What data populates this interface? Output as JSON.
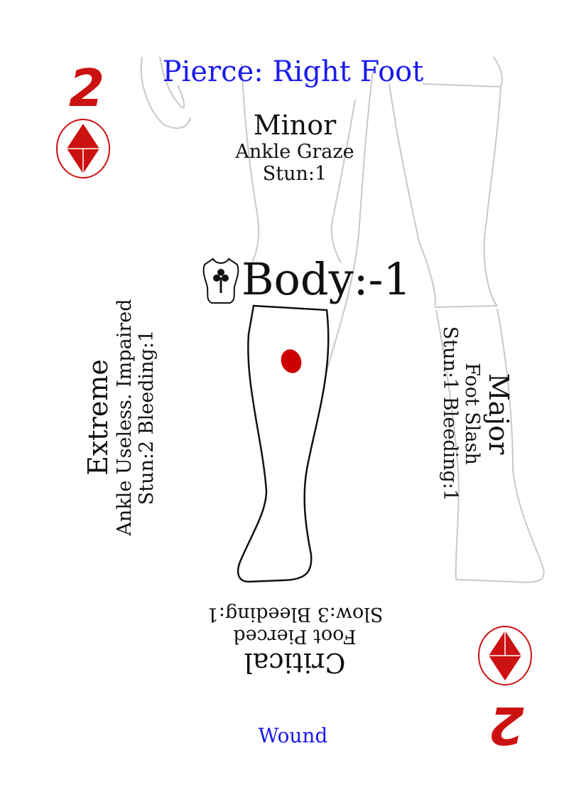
{
  "card": {
    "rank": "2",
    "suit": "diamonds-icon",
    "title": "Pierce: Right Foot",
    "footer": "Wound",
    "body_modifier": "Body:-1",
    "accent_color": "#cc1111",
    "title_color": "#1a1aee"
  },
  "wounds": {
    "minor": {
      "severity": "Minor",
      "effect": "Ankle Graze",
      "penalty": "Stun:1"
    },
    "major": {
      "severity": "Major",
      "effect": "Foot Slash",
      "penalty": "Stun:1 Bleeding:1"
    },
    "critical": {
      "severity": "Critical",
      "effect": "Foot Pierced",
      "penalty": "Slow:3 Bleeding:1"
    },
    "extreme": {
      "severity": "Extreme",
      "effect": "Ankle Useless. Impaired",
      "penalty": "Stun:2 Bleeding:1"
    }
  }
}
